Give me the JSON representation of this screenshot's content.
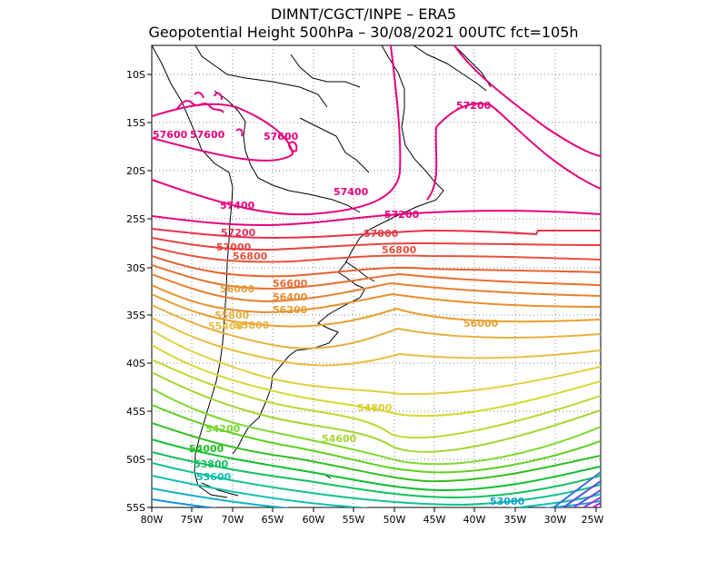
{
  "header": {
    "line1": "DIMNT/CGCT/INPE  –  ERA5",
    "line2": "Geopotential Height 500hPa –  30/08/2021 00UTC fct=105h"
  },
  "axes": {
    "lat_labels": [
      "10S",
      "15S",
      "20S",
      "25S",
      "30S",
      "35S",
      "40S",
      "45S",
      "50S",
      "55S"
    ],
    "lon_labels": [
      "80W",
      "75W",
      "70W",
      "65W",
      "60W",
      "55W",
      "50W",
      "45W",
      "40W",
      "35W",
      "30W",
      "25W"
    ]
  },
  "contour_labels": [
    {
      "text": "57600",
      "color": "#e6007e"
    },
    {
      "text": "57600",
      "color": "#e6007e"
    },
    {
      "text": "57600",
      "color": "#e6007e"
    },
    {
      "text": "57200",
      "color": "#e6007e"
    },
    {
      "text": "57400",
      "color": "#e6007e"
    },
    {
      "text": "57400",
      "color": "#e6007e"
    },
    {
      "text": "57200",
      "color": "#e6007e"
    },
    {
      "text": "57200",
      "color": "#e0305a"
    },
    {
      "text": "57000",
      "color": "#e84040"
    },
    {
      "text": "57000",
      "color": "#e84040"
    },
    {
      "text": "56800",
      "color": "#e8503a"
    },
    {
      "text": "56800",
      "color": "#e8503a"
    },
    {
      "text": "56600",
      "color": "#e86a30"
    },
    {
      "text": "56400",
      "color": "#e88a30"
    },
    {
      "text": "56200",
      "color": "#e89a30"
    },
    {
      "text": "56000",
      "color": "#e8a030"
    },
    {
      "text": "56000",
      "color": "#e8a030"
    },
    {
      "text": "55800",
      "color": "#e8b040"
    },
    {
      "text": "55800",
      "color": "#e8b040"
    },
    {
      "text": "55400",
      "color": "#e8c040"
    },
    {
      "text": "54800",
      "color": "#d8d030"
    },
    {
      "text": "54600",
      "color": "#a8d830"
    },
    {
      "text": "54200",
      "color": "#78d830"
    },
    {
      "text": "54000",
      "color": "#20c020"
    },
    {
      "text": "53800",
      "color": "#10c060"
    },
    {
      "text": "53600",
      "color": "#10c0b0"
    },
    {
      "text": "53000",
      "color": "#10a0d0"
    }
  ]
}
